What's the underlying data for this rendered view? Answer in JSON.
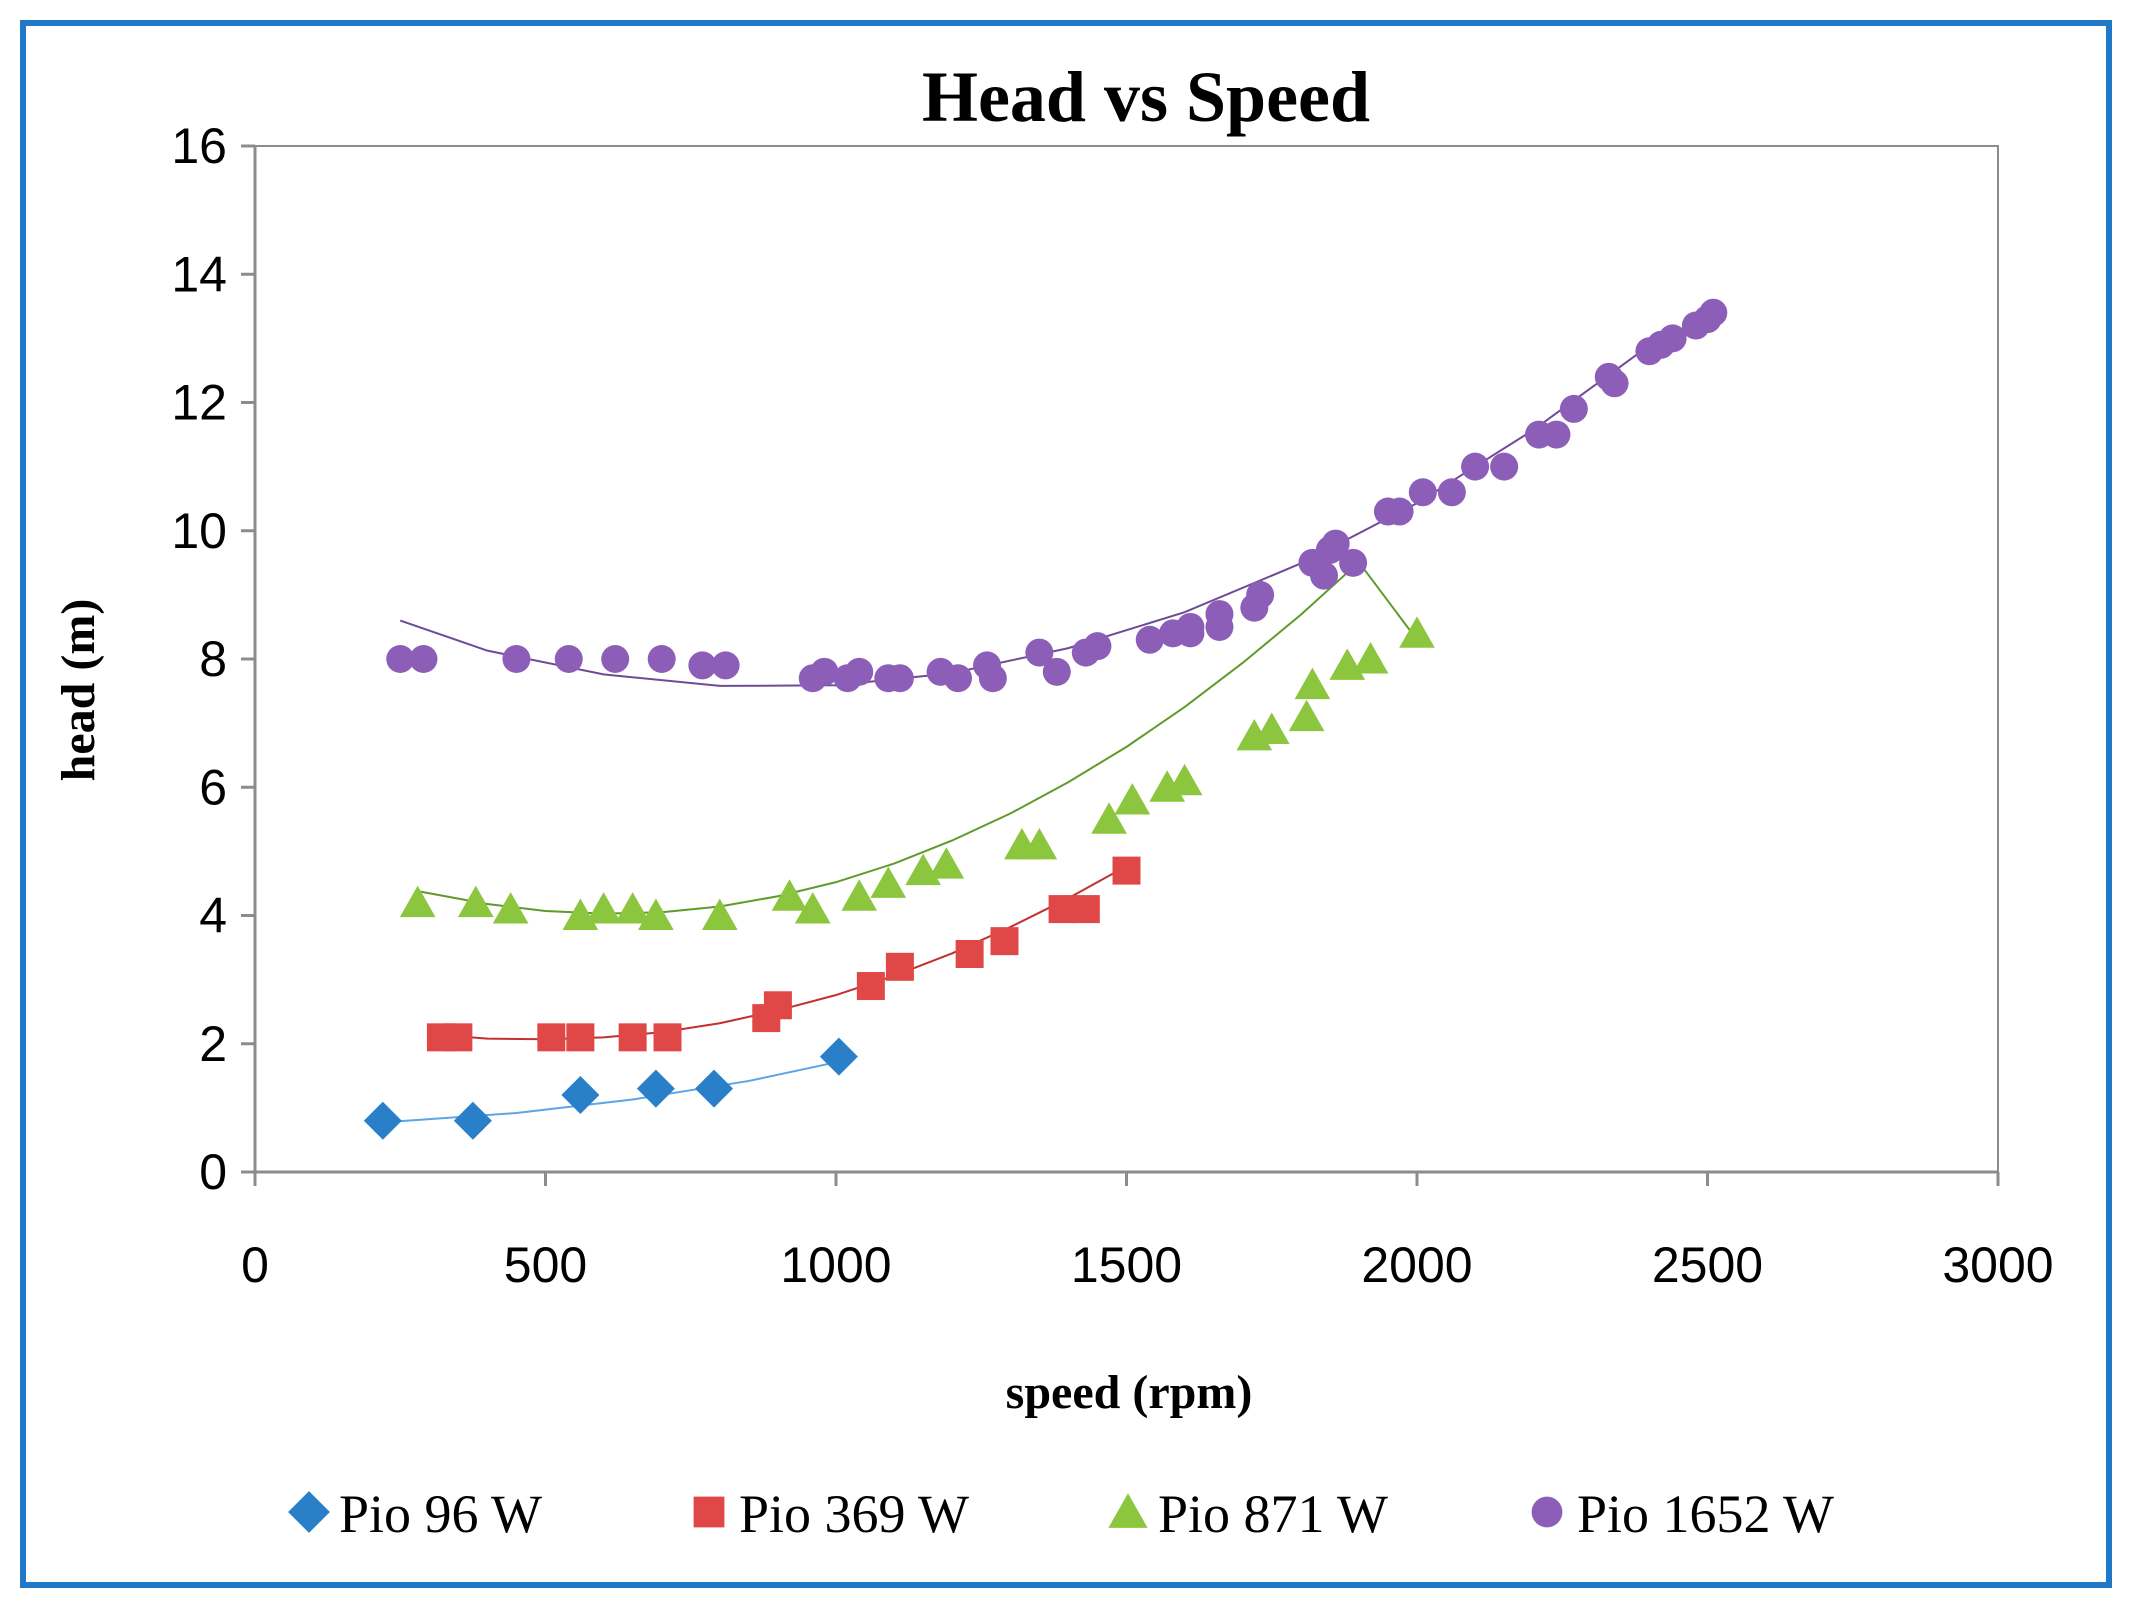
{
  "chart_data": {
    "type": "scatter",
    "title": "Head vs Speed",
    "xlabel": "speed (rpm)",
    "ylabel": "head (m)",
    "xlim": [
      0,
      3000
    ],
    "ylim": [
      0,
      16
    ],
    "xticks": [
      "0",
      "500",
      "1000",
      "1500",
      "2000",
      "2500",
      "3000"
    ],
    "yticks": [
      "0",
      "2",
      "4",
      "6",
      "8",
      "10",
      "12",
      "14",
      "16"
    ],
    "grid": false,
    "legend_position": "bottom",
    "series": [
      {
        "name": "Pio 96 W",
        "marker": "diamond",
        "color": "#2a7fc9",
        "line_color": "#5aa6e6",
        "points": [
          [
            220,
            0.8
          ],
          [
            375,
            0.8
          ],
          [
            560,
            1.2
          ],
          [
            690,
            1.3
          ],
          [
            790,
            1.3
          ],
          [
            1005,
            1.8
          ]
        ],
        "trend": [
          [
            230,
            0.78
          ],
          [
            450,
            0.92
          ],
          [
            650,
            1.13
          ],
          [
            850,
            1.42
          ],
          [
            1005,
            1.72
          ]
        ]
      },
      {
        "name": "Pio 369 W",
        "marker": "square",
        "color": "#e04848",
        "line_color": "#c23030",
        "points": [
          [
            320,
            2.1
          ],
          [
            350,
            2.1
          ],
          [
            510,
            2.1
          ],
          [
            560,
            2.1
          ],
          [
            650,
            2.1
          ],
          [
            710,
            2.1
          ],
          [
            880,
            2.4
          ],
          [
            900,
            2.6
          ],
          [
            1060,
            2.9
          ],
          [
            1110,
            3.2
          ],
          [
            1230,
            3.4
          ],
          [
            1290,
            3.6
          ],
          [
            1390,
            4.1
          ],
          [
            1430,
            4.1
          ],
          [
            1500,
            4.7
          ]
        ],
        "trend": [
          [
            300,
            2.15
          ],
          [
            400,
            2.08
          ],
          [
            500,
            2.07
          ],
          [
            600,
            2.1
          ],
          [
            700,
            2.18
          ],
          [
            800,
            2.32
          ],
          [
            900,
            2.52
          ],
          [
            1000,
            2.76
          ],
          [
            1100,
            3.06
          ],
          [
            1200,
            3.41
          ],
          [
            1300,
            3.82
          ],
          [
            1400,
            4.27
          ],
          [
            1500,
            4.77
          ]
        ]
      },
      {
        "name": "Pio 871 W",
        "marker": "triangle",
        "color": "#8cc63e",
        "line_color": "#5f9a2a",
        "points": [
          [
            280,
            4.2
          ],
          [
            380,
            4.2
          ],
          [
            440,
            4.1
          ],
          [
            560,
            4.0
          ],
          [
            600,
            4.1
          ],
          [
            650,
            4.1
          ],
          [
            690,
            4.0
          ],
          [
            800,
            4.0
          ],
          [
            920,
            4.3
          ],
          [
            960,
            4.1
          ],
          [
            1040,
            4.3
          ],
          [
            1090,
            4.5
          ],
          [
            1150,
            4.7
          ],
          [
            1190,
            4.8
          ],
          [
            1320,
            5.1
          ],
          [
            1350,
            5.1
          ],
          [
            1470,
            5.5
          ],
          [
            1510,
            5.8
          ],
          [
            1570,
            6.0
          ],
          [
            1600,
            6.1
          ],
          [
            1720,
            6.8
          ],
          [
            1750,
            6.9
          ],
          [
            1810,
            7.1
          ],
          [
            1820,
            7.6
          ],
          [
            1880,
            7.9
          ],
          [
            1920,
            8.0
          ],
          [
            2000,
            8.4
          ]
        ],
        "trend": [
          [
            280,
            4.38
          ],
          [
            400,
            4.18
          ],
          [
            500,
            4.07
          ],
          [
            600,
            4.03
          ],
          [
            700,
            4.05
          ],
          [
            800,
            4.14
          ],
          [
            900,
            4.3
          ],
          [
            1000,
            4.52
          ],
          [
            1100,
            4.81
          ],
          [
            1200,
            5.17
          ],
          [
            1300,
            5.59
          ],
          [
            1400,
            6.08
          ],
          [
            1500,
            6.63
          ],
          [
            1600,
            7.25
          ],
          [
            1700,
            7.94
          ],
          [
            1800,
            8.69
          ],
          [
            1900,
            9.51
          ],
          [
            2000,
            8.3
          ]
        ]
      },
      {
        "name": "Pio 1652 W",
        "marker": "circle",
        "color": "#8d5eb7",
        "line_color": "#6f4a96",
        "points": [
          [
            250,
            8.0
          ],
          [
            290,
            8.0
          ],
          [
            450,
            8.0
          ],
          [
            540,
            8.0
          ],
          [
            620,
            8.0
          ],
          [
            700,
            8.0
          ],
          [
            770,
            7.9
          ],
          [
            810,
            7.9
          ],
          [
            960,
            7.7
          ],
          [
            980,
            7.8
          ],
          [
            1020,
            7.7
          ],
          [
            1040,
            7.8
          ],
          [
            1090,
            7.7
          ],
          [
            1110,
            7.7
          ],
          [
            1180,
            7.8
          ],
          [
            1210,
            7.7
          ],
          [
            1260,
            7.9
          ],
          [
            1270,
            7.7
          ],
          [
            1350,
            8.1
          ],
          [
            1380,
            7.8
          ],
          [
            1430,
            8.1
          ],
          [
            1450,
            8.2
          ],
          [
            1540,
            8.3
          ],
          [
            1580,
            8.4
          ],
          [
            1610,
            8.5
          ],
          [
            1610,
            8.4
          ],
          [
            1660,
            8.5
          ],
          [
            1660,
            8.7
          ],
          [
            1720,
            8.8
          ],
          [
            1730,
            9.0
          ],
          [
            1820,
            9.5
          ],
          [
            1840,
            9.3
          ],
          [
            1850,
            9.7
          ],
          [
            1860,
            9.8
          ],
          [
            1890,
            9.5
          ],
          [
            1950,
            10.3
          ],
          [
            1970,
            10.3
          ],
          [
            2010,
            10.6
          ],
          [
            2060,
            10.6
          ],
          [
            2100,
            11.0
          ],
          [
            2150,
            11.0
          ],
          [
            2210,
            11.5
          ],
          [
            2240,
            11.5
          ],
          [
            2270,
            11.9
          ],
          [
            2330,
            12.4
          ],
          [
            2340,
            12.3
          ],
          [
            2400,
            12.8
          ],
          [
            2420,
            12.9
          ],
          [
            2440,
            13.0
          ],
          [
            2480,
            13.2
          ],
          [
            2500,
            13.3
          ],
          [
            2510,
            13.4
          ]
        ],
        "trend": [
          [
            250,
            8.6
          ],
          [
            400,
            8.13
          ],
          [
            600,
            7.76
          ],
          [
            800,
            7.58
          ],
          [
            1000,
            7.59
          ],
          [
            1200,
            7.78
          ],
          [
            1400,
            8.17
          ],
          [
            1600,
            8.73
          ],
          [
            1800,
            9.49
          ],
          [
            2000,
            10.43
          ],
          [
            2200,
            11.57
          ],
          [
            2400,
            12.89
          ],
          [
            2510,
            13.4
          ]
        ]
      }
    ]
  }
}
